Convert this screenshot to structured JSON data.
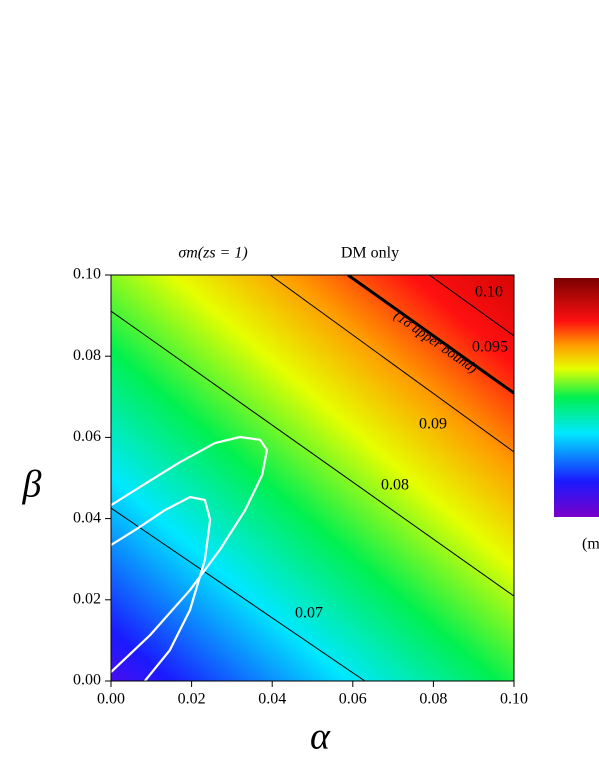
{
  "chart_data": {
    "type": "contour",
    "title": "σm(zs = 1)",
    "subtitle": "DM only",
    "xlabel": "α",
    "ylabel": "β",
    "xlim": [
      0,
      0.1
    ],
    "ylim": [
      0,
      0.1
    ],
    "xticks": [
      {
        "value": 0,
        "label": "0.00"
      },
      {
        "value": 0.02,
        "label": "0.02"
      },
      {
        "value": 0.04,
        "label": "0.04"
      },
      {
        "value": 0.06,
        "label": "0.06"
      },
      {
        "value": 0.08,
        "label": "0.08"
      },
      {
        "value": 0.1,
        "label": "0.10"
      }
    ],
    "yticks": [
      {
        "value": 0,
        "label": "0.00"
      },
      {
        "value": 0.02,
        "label": "0.02"
      },
      {
        "value": 0.04,
        "label": "0.04"
      },
      {
        "value": 0.06,
        "label": "0.06"
      },
      {
        "value": 0.08,
        "label": "0.08"
      },
      {
        "value": 0.1,
        "label": "0.10"
      }
    ],
    "contours": [
      {
        "label": "0.07",
        "x": [
          0,
          0.063
        ],
        "y": [
          0.0426,
          0
        ]
      },
      {
        "label": "0.08",
        "x": [
          0,
          0.1
        ],
        "y": [
          0.0911,
          0.0209
        ]
      },
      {
        "label": "0.09",
        "x": [
          0.0395,
          0.1
        ],
        "y": [
          0.1,
          0.0564
        ]
      },
      {
        "label": "0.095",
        "x": [
          0.0588,
          0.1
        ],
        "y": [
          0.1,
          0.0709
        ],
        "bold": true
      },
      {
        "label": "0.10",
        "x": [
          0.079,
          0.1
        ],
        "y": [
          0.1,
          0.085
        ]
      }
    ],
    "annotation": "(1σ upper bound)",
    "confidence_contours": [
      {
        "color": "#ffffff",
        "x": [
          0,
          0.0097,
          0.0196,
          0.027,
          0.0333,
          0.0375,
          0.0387,
          0.037,
          0.032,
          0.0258,
          0.0171,
          0.0072,
          0
        ],
        "y": [
          0.0022,
          0.0113,
          0.0224,
          0.0323,
          0.0421,
          0.0507,
          0.0569,
          0.0594,
          0.0601,
          0.0586,
          0.0539,
          0.0478,
          0.0433
        ]
      },
      {
        "color": "#ffffff",
        "x": [
          0.0084,
          0.0146,
          0.0196,
          0.0233,
          0.0246,
          0.0233,
          0.0196,
          0.0134,
          0.006,
          0
        ],
        "y": [
          0,
          0.0076,
          0.0175,
          0.0298,
          0.0397,
          0.0446,
          0.0453,
          0.0421,
          0.0372,
          0.0335
        ]
      }
    ],
    "colorbar_label": "(m"
  }
}
